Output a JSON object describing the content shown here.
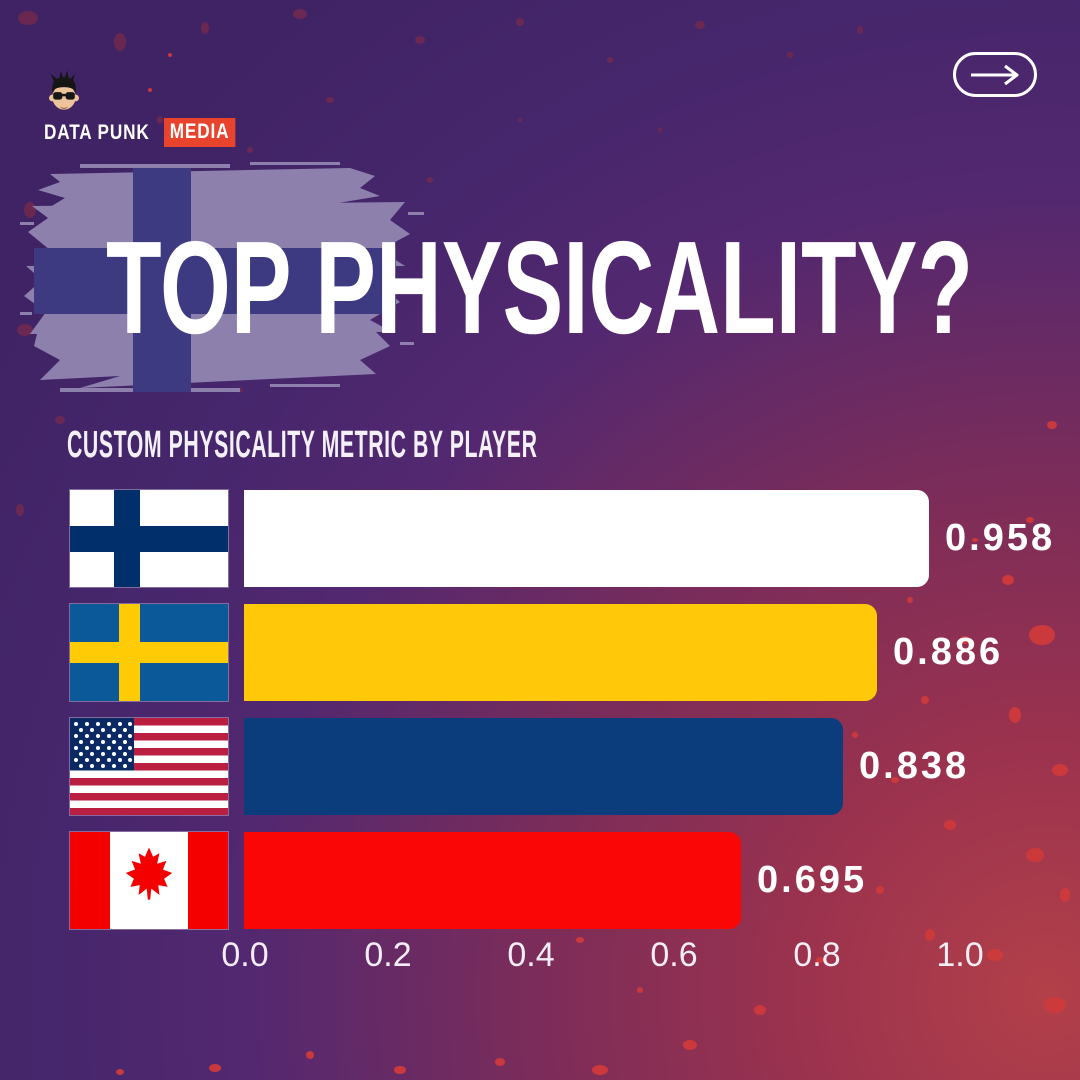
{
  "brand": {
    "logo_text": "DATA PUNK",
    "logo_badge": "MEDIA",
    "badge_color": "#e8432d",
    "logo_icon": "punk-head-icon"
  },
  "nav": {
    "next_button_icon": "arrow-right-icon"
  },
  "title": "TOP PHYSICALITY?",
  "subtitle": "CUSTOM PHYSICALITY METRIC BY PLAYER",
  "chart_data": {
    "type": "bar",
    "orientation": "horizontal",
    "title": "CUSTOM PHYSICALITY METRIC BY PLAYER",
    "categories": [
      "Finland",
      "Sweden",
      "United States",
      "Canada"
    ],
    "category_icons": [
      "finland-flag",
      "sweden-flag",
      "usa-flag",
      "canada-flag"
    ],
    "series": [
      {
        "name": "Custom physicality metric",
        "values": [
          0.958,
          0.886,
          0.838,
          0.695
        ]
      }
    ],
    "value_labels": [
      "0.958",
      "0.886",
      "0.838",
      "0.695"
    ],
    "bar_colors": [
      "#ffffff",
      "#ffc808",
      "#0b3d7c",
      "#fb0606"
    ],
    "x_ticks": [
      "0.0",
      "0.2",
      "0.4",
      "0.6",
      "0.8",
      "1.0"
    ],
    "xlim": [
      0.0,
      1.0
    ],
    "grid": false,
    "legend": "none"
  },
  "style_colors": {
    "background_purple": "#46266c",
    "background_crimson": "#a23a4e",
    "splatter_dark": "#6f2950",
    "splatter_red": "#cf3a3b",
    "brush_stroke": "#8d80ad",
    "brush_cross": "#3d3a82",
    "text": "#ffffff"
  }
}
